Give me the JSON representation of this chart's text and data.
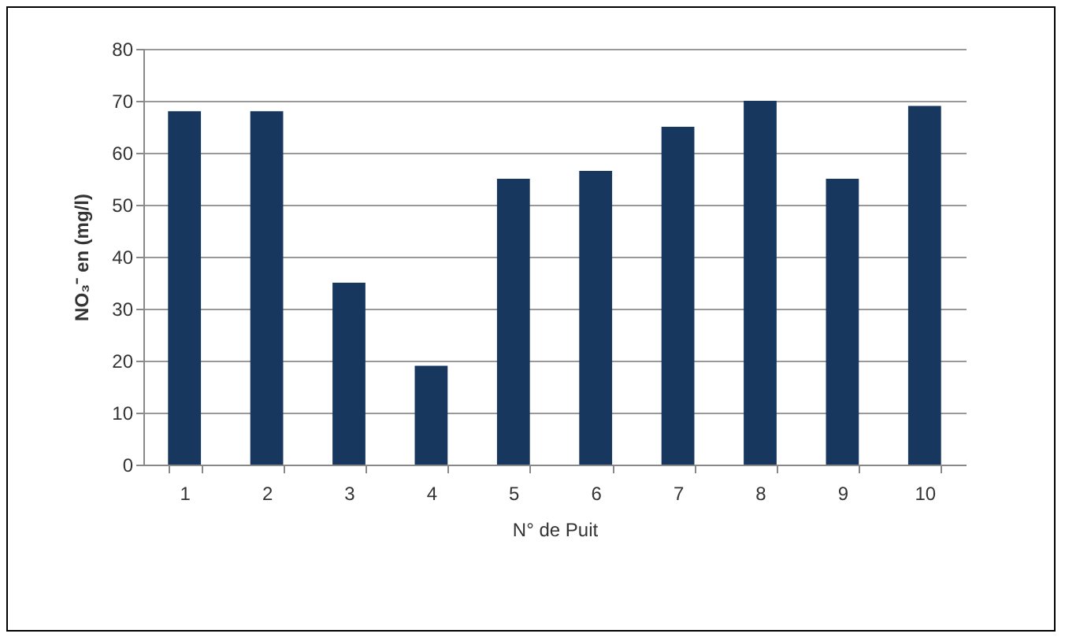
{
  "chart_data": {
    "type": "bar",
    "xlabel": "N° de Puit",
    "ylabel": "NO₃⁻ en (mg/l)",
    "categories": [
      "1",
      "2",
      "3",
      "4",
      "5",
      "6",
      "7",
      "8",
      "9",
      "10"
    ],
    "values": [
      68,
      68,
      35,
      19,
      55,
      56.5,
      65,
      70,
      55,
      69
    ],
    "color": "#17375e",
    "ylim": [
      0,
      80
    ],
    "yticks": [
      0,
      10,
      20,
      30,
      40,
      50,
      60,
      70,
      80
    ],
    "grid": "y"
  }
}
